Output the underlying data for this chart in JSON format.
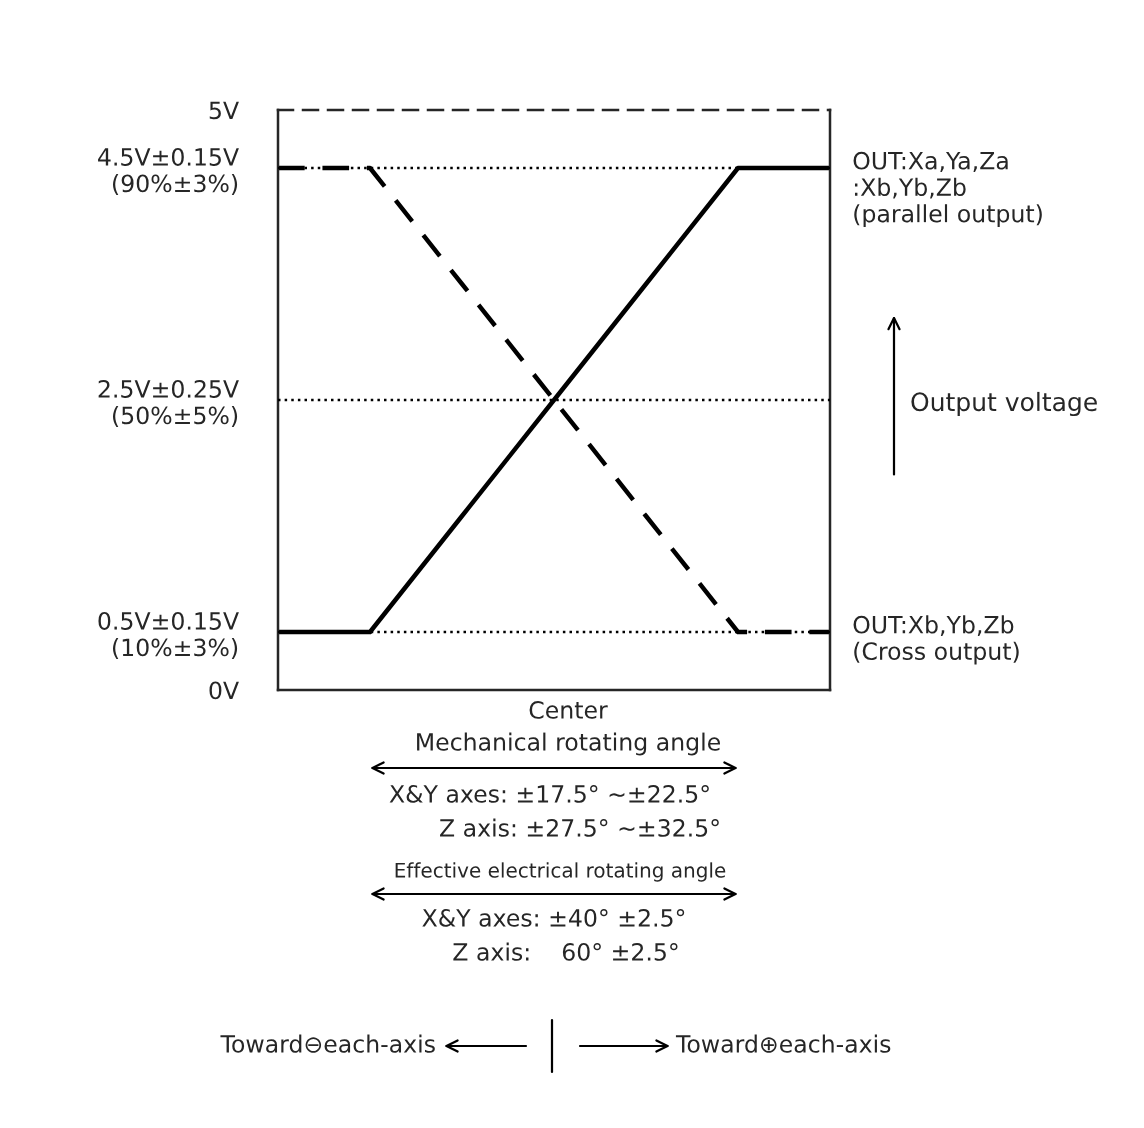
{
  "chart_data": {
    "type": "line",
    "categories": [
      null,
      null,
      null,
      null,
      null,
      null,
      null
    ],
    "series": [
      {
        "name": "OUT:Xa,Ya,Za\n:Xb,Yb,Zb\n(parallel output)",
        "color": "#000000",
        "line_style": "solid",
        "values": [
          0.5,
          0.5,
          1.5,
          2.5,
          3.5,
          4.5,
          4.5
        ]
      },
      {
        "name": "OUT:Xb,Yb,Zb\n(Cross output)",
        "color": "#000000",
        "line_style": "dashed",
        "values": [
          4.5,
          4.5,
          3.5,
          2.5,
          1.5,
          0.5,
          0.5
        ]
      }
    ],
    "ylabel": "Output voltage",
    "ylim": [
      0,
      5
    ],
    "yticks": [
      {
        "value": 0,
        "label": "0V"
      },
      {
        "value": 0.5,
        "label": "0.5V±0.15V\n(10%±3%)"
      },
      {
        "value": 2.5,
        "label": "2.5V±0.25V\n(50%±5%)"
      },
      {
        "value": 4.5,
        "label": "4.5V±0.15V\n(90%±3%)"
      },
      {
        "value": 5,
        "label": "5V"
      }
    ],
    "tick_labels": "y",
    "ref_lines": [
      {
        "axis": "y",
        "value": 0.5,
        "line_style": "dotted"
      },
      {
        "axis": "y",
        "value": 2.5,
        "line_style": "dotted"
      },
      {
        "axis": "y",
        "value": 4.5,
        "line_style": "dotted"
      }
    ],
    "annotations": [
      "Center",
      "Mechanical rotating angle",
      "X&Y axes: ±17.5° ∼±22.5°",
      "Z axis: ±27.5° ∼±32.5°",
      "Effective electrical rotating angle",
      "X&Y axes: ±40° ±2.5°",
      "Z axis:    60° ±2.5°",
      "Toward⊖each-axis",
      "Toward⊕each-axis"
    ],
    "legend": false,
    "grid": false
  }
}
